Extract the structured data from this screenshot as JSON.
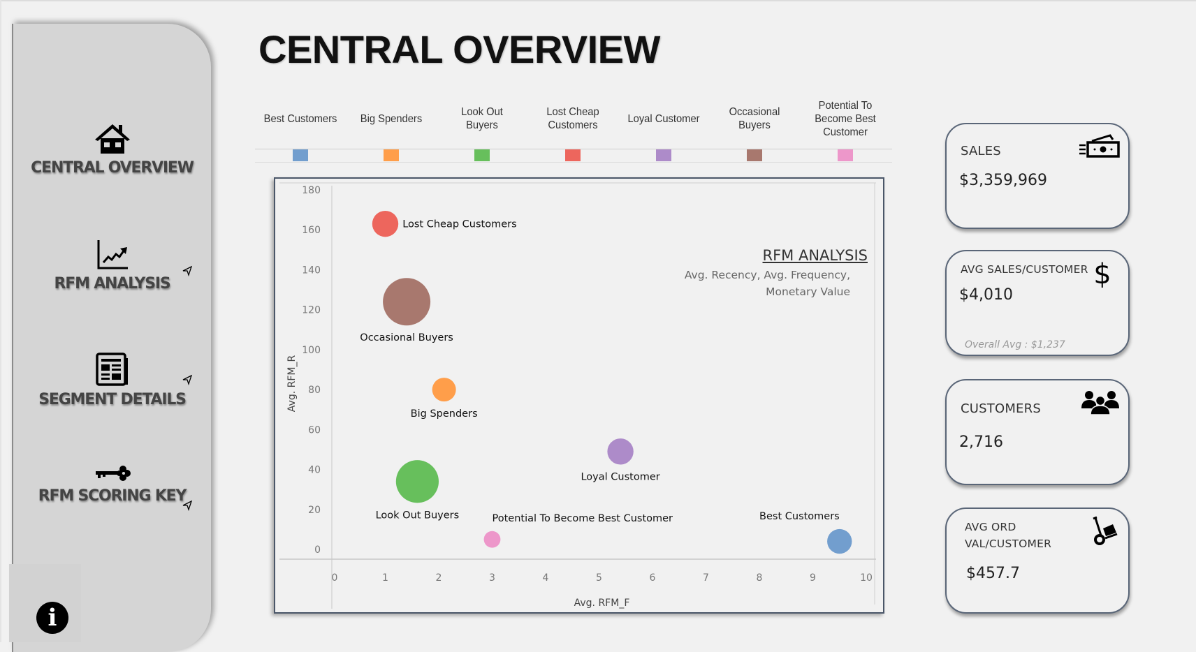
{
  "page": {
    "title": "CENTRAL OVERVIEW"
  },
  "sidebar": {
    "items": [
      {
        "label": "CENTRAL OVERVIEW",
        "icon": "home-icon"
      },
      {
        "label": "RFM ANALYSIS",
        "icon": "line-chart-icon"
      },
      {
        "label": "SEGMENT DETAILS",
        "icon": "newspaper-icon"
      },
      {
        "label": "RFM SCORING KEY",
        "icon": "key-icon"
      }
    ],
    "info_icon": "i"
  },
  "legend": {
    "items": [
      {
        "label": "Best Customers",
        "color": "#729ece"
      },
      {
        "label": "Big Spenders",
        "color": "#ff9e4a"
      },
      {
        "label": "Look Out Buyers",
        "color": "#67bf5c"
      },
      {
        "label": "Lost Cheap Customers",
        "color": "#ed665d"
      },
      {
        "label": "Loyal Customer",
        "color": "#ad8bc9"
      },
      {
        "label": "Occasional Buyers",
        "color": "#a8786e"
      },
      {
        "label": "Potential To Become Best Customer",
        "color": "#ed97ca"
      }
    ]
  },
  "chart_data": {
    "type": "scatter",
    "title": "RFM ANALYSIS",
    "subtitle": "Avg. Recency, Avg. Frequency, Monetary Value",
    "xlabel": "Avg. RFM_F",
    "ylabel": "Avg. RFM_R",
    "xlim": [
      0,
      10
    ],
    "ylim": [
      0,
      180
    ],
    "xticks": [
      0,
      1,
      2,
      3,
      4,
      5,
      6,
      7,
      8,
      9,
      10
    ],
    "yticks": [
      0,
      20,
      40,
      60,
      80,
      100,
      120,
      140,
      160,
      180
    ],
    "grid": false,
    "size_encoding": "Monetary Value (relative)",
    "points": [
      {
        "label": "Lost Cheap Customers",
        "x": 1.0,
        "y": 163,
        "size": 0.55,
        "color": "#ed665d"
      },
      {
        "label": "Occasional Buyers",
        "x": 1.4,
        "y": 124,
        "size": 1.0,
        "color": "#a8786e"
      },
      {
        "label": "Big Spenders",
        "x": 2.1,
        "y": 80,
        "size": 0.5,
        "color": "#ff9e4a"
      },
      {
        "label": "Look Out Buyers",
        "x": 1.6,
        "y": 34,
        "size": 0.9,
        "color": "#67bf5c"
      },
      {
        "label": "Loyal Customer",
        "x": 5.4,
        "y": 49,
        "size": 0.55,
        "color": "#ad8bc9"
      },
      {
        "label": "Potential To Become Best Customer",
        "x": 3.0,
        "y": 5,
        "size": 0.35,
        "color": "#ed97ca"
      },
      {
        "label": "Best Customers",
        "x": 9.5,
        "y": 4,
        "size": 0.52,
        "color": "#729ece"
      }
    ]
  },
  "kpis": [
    {
      "label": "SALES",
      "value": "$3,359,969",
      "icon": "money-icon"
    },
    {
      "label": "AVG SALES/CUSTOMER",
      "value": "$4,010",
      "note": "Overall Avg : $1,237",
      "icon": "dollar-icon"
    },
    {
      "label": "CUSTOMERS",
      "value": "2,716",
      "icon": "users-icon"
    },
    {
      "label": "AVG ORD VAL/CUSTOMER",
      "value": "$457.7",
      "icon": "hand-truck-icon"
    }
  ]
}
